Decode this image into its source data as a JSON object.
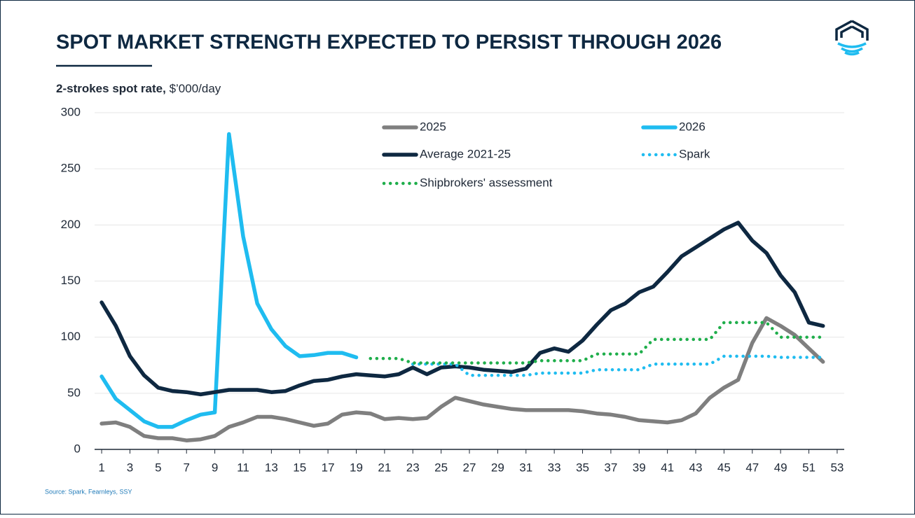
{
  "chart_data": {
    "type": "line",
    "title": "SPOT MARKET STRENGTH EXPECTED TO PERSIST THROUGH 2026",
    "y_label_bold": "2-strokes spot rate,",
    "y_label_unit": "$’000/day",
    "source": "Source: Spark, Fearnleys, SSY",
    "x": [
      1,
      2,
      3,
      4,
      5,
      6,
      7,
      8,
      9,
      10,
      11,
      12,
      13,
      14,
      15,
      16,
      17,
      18,
      19,
      20,
      21,
      22,
      23,
      24,
      25,
      26,
      27,
      28,
      29,
      30,
      31,
      32,
      33,
      34,
      35,
      36,
      37,
      38,
      39,
      40,
      41,
      42,
      43,
      44,
      45,
      46,
      47,
      48,
      49,
      50,
      51,
      52
    ],
    "xlim": [
      0.5,
      53.5
    ],
    "xticks": [
      1,
      3,
      5,
      7,
      9,
      11,
      13,
      15,
      17,
      19,
      21,
      23,
      25,
      27,
      29,
      31,
      33,
      35,
      37,
      39,
      41,
      43,
      45,
      47,
      49,
      51,
      53
    ],
    "ylim": [
      0,
      300
    ],
    "yticks": [
      0,
      50,
      100,
      150,
      200,
      250,
      300
    ],
    "grid": true,
    "series": [
      {
        "name": "2025",
        "color": "#7f7f7f",
        "dash": "solid",
        "values": [
          23,
          24,
          20,
          12,
          10,
          10,
          8,
          9,
          12,
          20,
          24,
          29,
          29,
          27,
          24,
          21,
          23,
          31,
          33,
          32,
          27,
          28,
          27,
          28,
          38,
          46,
          43,
          40,
          38,
          36,
          35,
          35,
          35,
          35,
          34,
          32,
          31,
          29,
          26,
          25,
          24,
          26,
          32,
          46,
          55,
          62,
          95,
          117,
          110,
          102,
          90,
          78
        ]
      },
      {
        "name": "2026",
        "color": "#1fbcf0",
        "dash": "solid",
        "values": [
          65,
          45,
          35,
          25,
          20,
          20,
          26,
          31,
          33,
          281,
          190,
          130,
          107,
          92,
          83,
          84,
          86,
          86,
          82,
          null,
          null,
          null,
          null,
          null,
          null,
          null,
          null,
          null,
          null,
          null,
          null,
          null,
          null,
          null,
          null,
          null,
          null,
          null,
          null,
          null,
          null,
          null,
          null,
          null,
          null,
          null,
          null,
          null,
          null,
          null,
          null,
          null
        ]
      },
      {
        "name": "Average 2021-25",
        "color": "#0e2841",
        "dash": "solid",
        "values": [
          131,
          110,
          83,
          66,
          55,
          52,
          51,
          49,
          51,
          53,
          53,
          53,
          51,
          52,
          57,
          61,
          62,
          65,
          67,
          66,
          65,
          67,
          73,
          67,
          73,
          74,
          73,
          71,
          70,
          69,
          72,
          86,
          90,
          87,
          97,
          111,
          124,
          130,
          140,
          145,
          158,
          172,
          180,
          188,
          196,
          202,
          186,
          175,
          155,
          140,
          113,
          110
        ]
      },
      {
        "name": "Spark",
        "color": "#1fbcf0",
        "dash": "dotted",
        "values": [
          null,
          null,
          null,
          null,
          null,
          null,
          null,
          null,
          null,
          null,
          null,
          null,
          null,
          null,
          null,
          null,
          null,
          null,
          null,
          null,
          null,
          null,
          76,
          76,
          76,
          76,
          66,
          66,
          66,
          66,
          66,
          68,
          68,
          68,
          68,
          71,
          71,
          71,
          71,
          76,
          76,
          76,
          76,
          76,
          83,
          83,
          83,
          83,
          82,
          82,
          82,
          82
        ]
      },
      {
        "name": "Shipbrokers' assessment",
        "color": "#1fae4b",
        "dash": "dotted",
        "values": [
          null,
          null,
          null,
          null,
          null,
          null,
          null,
          null,
          null,
          null,
          null,
          null,
          null,
          null,
          null,
          null,
          null,
          null,
          null,
          81,
          81,
          81,
          77,
          77,
          77,
          77,
          77,
          77,
          77,
          77,
          77,
          79,
          79,
          79,
          79,
          85,
          85,
          85,
          85,
          98,
          98,
          98,
          98,
          98,
          113,
          113,
          113,
          113,
          100,
          100,
          100,
          100
        ]
      }
    ]
  }
}
